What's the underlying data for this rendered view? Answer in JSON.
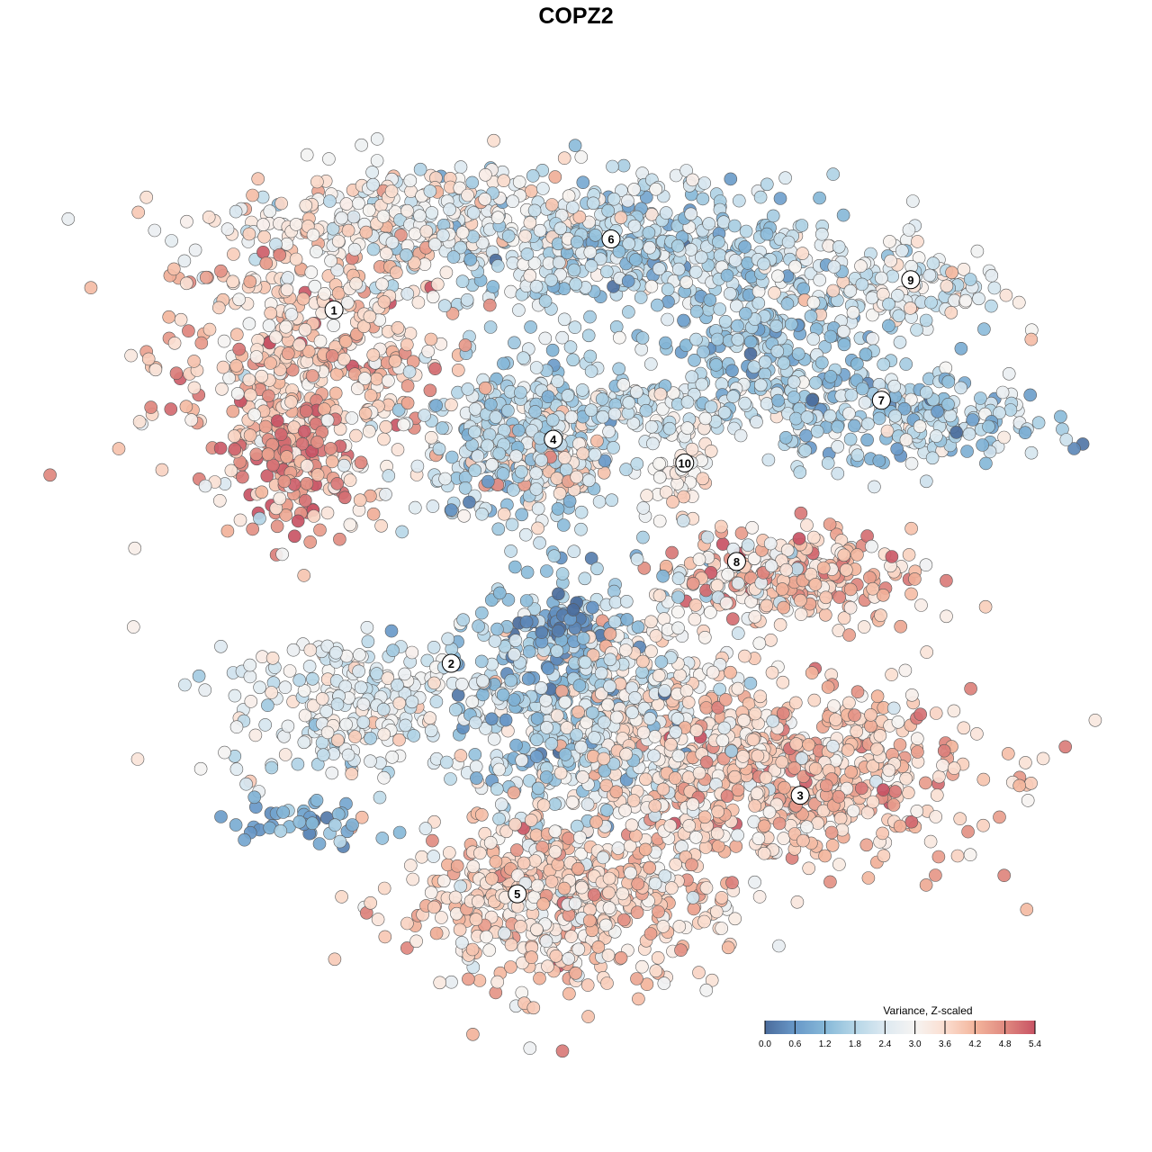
{
  "chart_data": {
    "type": "scatter",
    "title": "COPZ2",
    "xlabel": "",
    "ylabel": "",
    "xlim": [
      -50,
      50
    ],
    "ylim": [
      -50,
      50
    ],
    "grid": false,
    "point_summary": "Individual points approximated by per-region distributions (center, spread, count, mean and sd of value)",
    "regions": [
      {
        "cx": -35,
        "cy": 26,
        "sx": 9,
        "sy": 9,
        "n": 480,
        "mean": 3.8,
        "sd": 0.7
      },
      {
        "cx": -37,
        "cy": 14,
        "sx": 3,
        "sy": 4.5,
        "n": 120,
        "mean": 4.5,
        "sd": 0.6
      },
      {
        "cx": -22,
        "cy": 43,
        "sx": 11,
        "sy": 3.5,
        "n": 300,
        "mean": 3.0,
        "sd": 0.6
      },
      {
        "cx": 4,
        "cy": 40,
        "sx": 12,
        "sy": 4.5,
        "n": 450,
        "mean": 1.9,
        "sd": 0.6
      },
      {
        "cx": 20,
        "cy": 28,
        "sx": 6,
        "sy": 3,
        "n": 150,
        "mean": 1.4,
        "sd": 0.6
      },
      {
        "cx": 35,
        "cy": 35,
        "sx": 7,
        "sy": 3,
        "n": 150,
        "mean": 2.6,
        "sd": 0.7
      },
      {
        "cx": 36,
        "cy": 19.5,
        "sx": 9,
        "sy": 3,
        "n": 250,
        "mean": 1.8,
        "sd": 0.7
      },
      {
        "cx": -9,
        "cy": 16,
        "sx": 6,
        "sy": 5.5,
        "n": 350,
        "mean": 1.9,
        "sd": 0.6
      },
      {
        "cx": -6,
        "cy": 14,
        "sx": 3,
        "sy": 3,
        "n": 80,
        "mean": 3.8,
        "sd": 0.4
      },
      {
        "cx": 8,
        "cy": 20.6,
        "sx": 7,
        "sy": 2,
        "n": 120,
        "mean": 2.2,
        "sd": 0.5
      },
      {
        "cx": 10,
        "cy": 13.5,
        "sx": 2,
        "sy": 3,
        "n": 50,
        "mean": 3.3,
        "sd": 0.4
      },
      {
        "cx": 25,
        "cy": 0,
        "sx": 7,
        "sy": 3,
        "n": 200,
        "mean": 4.0,
        "sd": 0.7
      },
      {
        "cx": 14.5,
        "cy": -1.5,
        "sx": 6,
        "sy": 3,
        "n": 100,
        "mean": 3.0,
        "sd": 0.8
      },
      {
        "cx": -28.5,
        "cy": -16,
        "sx": 8,
        "sy": 4.5,
        "n": 250,
        "mean": 2.6,
        "sd": 0.6
      },
      {
        "cx": -5,
        "cy": -16,
        "sx": 6.5,
        "sy": 7.5,
        "n": 400,
        "mean": 1.7,
        "sd": 0.7
      },
      {
        "cx": 23,
        "cy": -24.6,
        "sx": 11,
        "sy": 5.5,
        "n": 600,
        "mean": 3.9,
        "sd": 0.6
      },
      {
        "cx": 6,
        "cy": -18,
        "sx": 6,
        "sy": 6,
        "n": 300,
        "mean": 3.2,
        "sd": 0.6
      },
      {
        "cx": -5,
        "cy": -40,
        "sx": 9.5,
        "sy": 5.5,
        "n": 550,
        "mean": 3.7,
        "sd": 0.6
      },
      {
        "cx": -35,
        "cy": -31,
        "sx": 4,
        "sy": 1.8,
        "n": 40,
        "mean": 1.0,
        "sd": 0.5
      },
      {
        "cx": -5,
        "cy": -7,
        "sx": 3,
        "sy": 2,
        "n": 60,
        "mean": 0.5,
        "sd": 0.4
      }
    ],
    "cluster_labels": [
      {
        "text": "1",
        "x": -31.6,
        "y": 32.4
      },
      {
        "text": "2",
        "x": -17.6,
        "y": -11
      },
      {
        "text": "3",
        "x": 24.1,
        "y": -27.2
      },
      {
        "text": "4",
        "x": -5.4,
        "y": 16.5
      },
      {
        "text": "5",
        "x": -9.7,
        "y": -39.3
      },
      {
        "text": "6",
        "x": 1.5,
        "y": 41.1
      },
      {
        "text": "7",
        "x": 33.8,
        "y": 21.3
      },
      {
        "text": "8",
        "x": 16.5,
        "y": 1.5
      },
      {
        "text": "9",
        "x": 37.3,
        "y": 36.1
      },
      {
        "text": "10",
        "x": 10.3,
        "y": 13.6
      }
    ],
    "legend": {
      "title": "Variance, Z-scaled",
      "placement": "bottom-right",
      "range": [
        0.0,
        5.4
      ],
      "ticks": [
        "0.0",
        "0.6",
        "1.2",
        "1.8",
        "2.4",
        "3.0",
        "3.6",
        "4.2",
        "4.8",
        "5.4"
      ],
      "colors": [
        "#4b6c9c",
        "#6898c8",
        "#86b8d8",
        "#b5d6e7",
        "#dde9f1",
        "#f6f4f2",
        "#fbded0",
        "#f3b59c",
        "#e08a80",
        "#c85364"
      ]
    }
  }
}
